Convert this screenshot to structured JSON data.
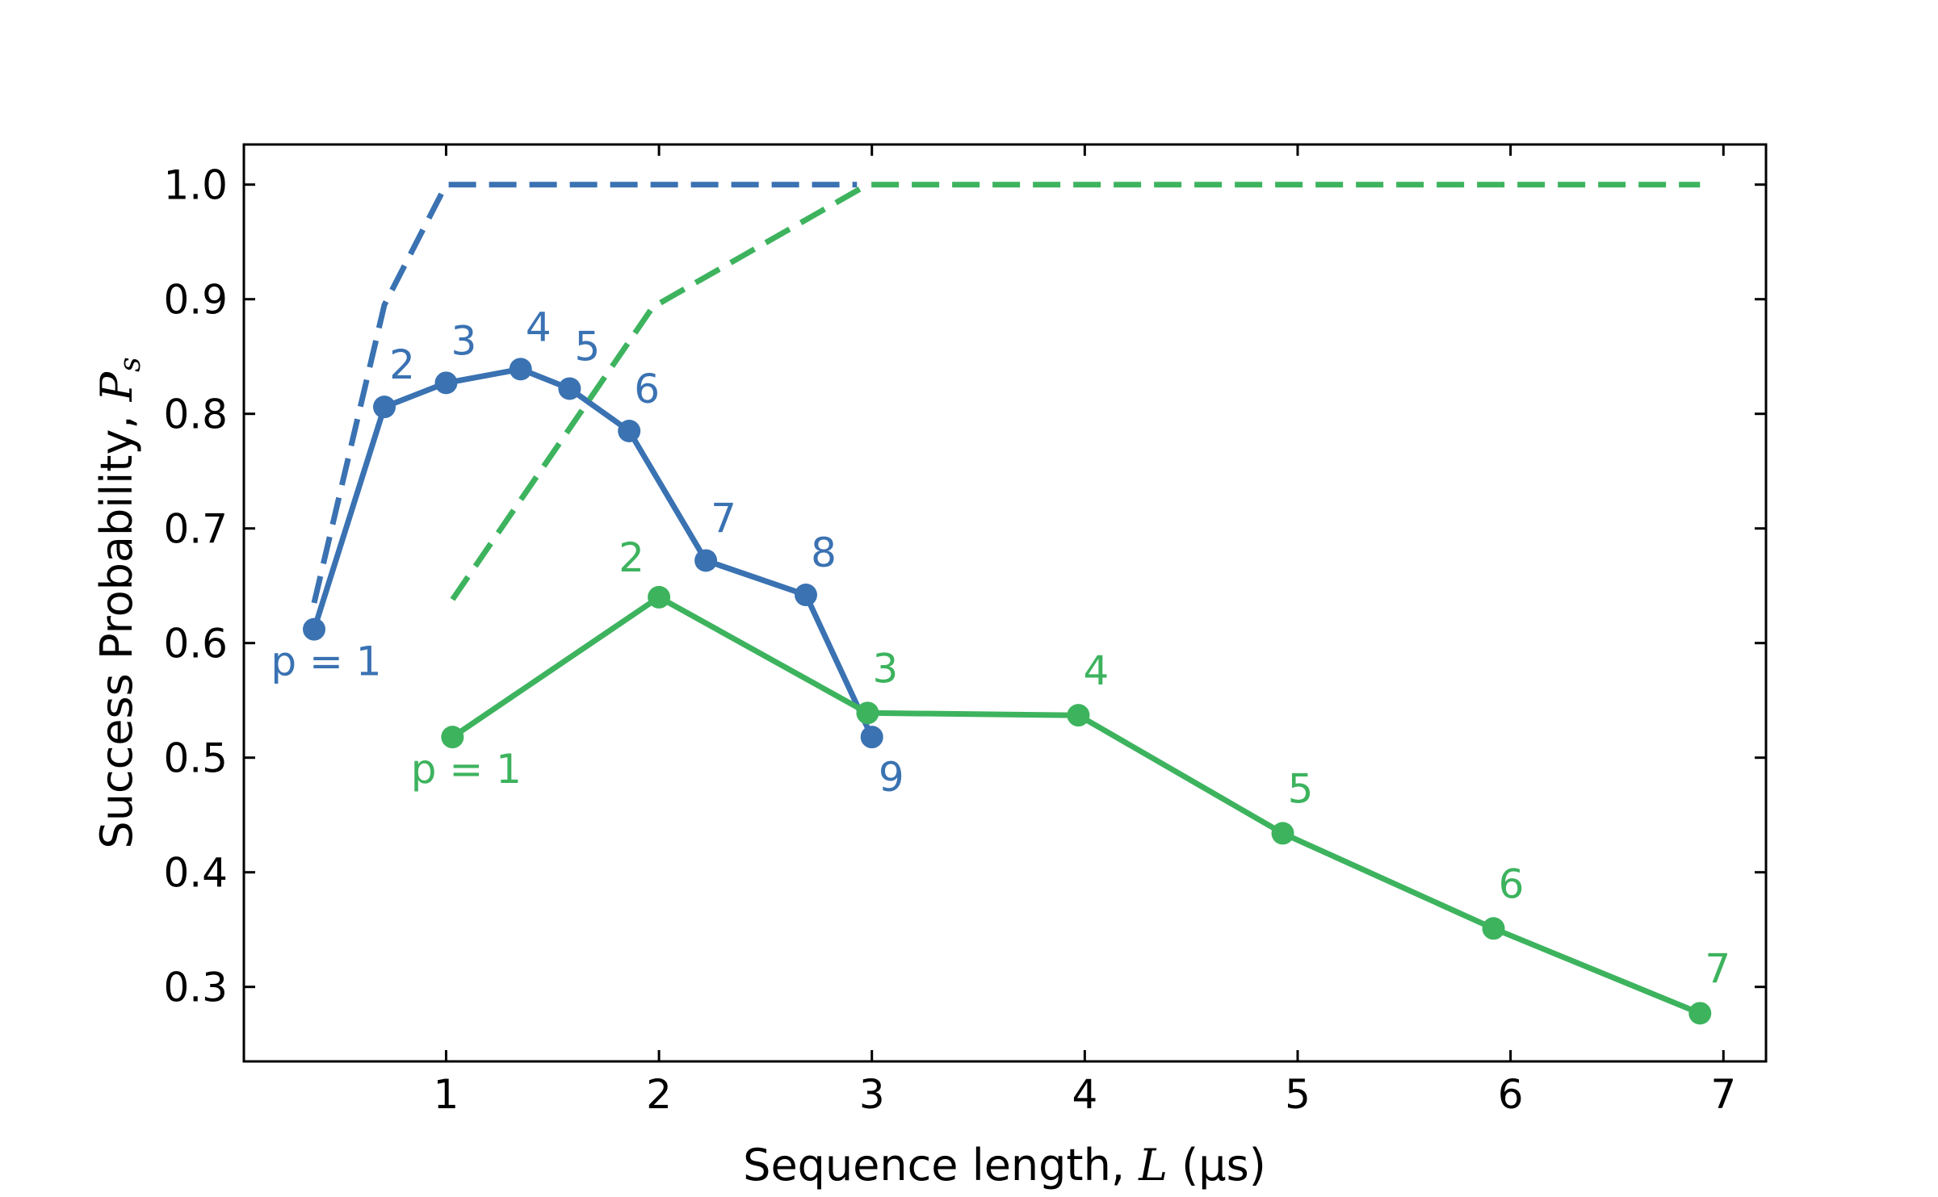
{
  "chart_data": {
    "type": "line",
    "xlabel": {
      "prefix": "Sequence length, ",
      "symbol": "L",
      "unit": " (μs)"
    },
    "ylabel": {
      "prefix": "Success Probability, ",
      "symbol": "P",
      "subscript": "s"
    },
    "xlim": [
      0.05,
      7.2
    ],
    "ylim": [
      0.235,
      1.035
    ],
    "xticks": [
      1,
      2,
      3,
      4,
      5,
      6,
      7
    ],
    "yticks": [
      0.3,
      0.4,
      0.5,
      0.6,
      0.7,
      0.8,
      0.9,
      1.0
    ],
    "ytick_labels": [
      "0.3",
      "0.4",
      "0.5",
      "0.6",
      "0.7",
      "0.8",
      "0.9",
      "1.0"
    ],
    "grid": false,
    "colors": {
      "blue": "#3a72b2",
      "green": "#3db35e"
    },
    "series": [
      {
        "color": "#3a72b2",
        "style": "solid-markers",
        "x": [
          0.38,
          0.71,
          1.0,
          1.35,
          1.58,
          1.86,
          2.22,
          2.69,
          3.0
        ],
        "y": [
          0.612,
          0.806,
          0.827,
          0.839,
          0.822,
          0.785,
          0.672,
          0.642,
          0.518
        ],
        "labels": [
          "p = 1",
          "2",
          "3",
          "4",
          "5",
          "6",
          "7",
          "8",
          "9"
        ]
      },
      {
        "color": "#3a72b2",
        "style": "dashed",
        "x": [
          0.38,
          0.71,
          1.0,
          2.93
        ],
        "y": [
          0.635,
          0.895,
          1.0,
          1.0
        ]
      },
      {
        "color": "#3db35e",
        "style": "solid-markers",
        "x": [
          1.03,
          2.0,
          2.98,
          3.97,
          4.93,
          5.92,
          6.89
        ],
        "y": [
          0.518,
          0.64,
          0.539,
          0.537,
          0.434,
          0.351,
          0.277
        ],
        "labels": [
          "p = 1",
          "2",
          "3",
          "4",
          "5",
          "6",
          "7"
        ]
      },
      {
        "color": "#3db35e",
        "style": "dashed",
        "x": [
          1.03,
          1.97,
          2.98,
          6.89
        ],
        "y": [
          0.638,
          0.893,
          1.0,
          1.0
        ]
      }
    ]
  }
}
